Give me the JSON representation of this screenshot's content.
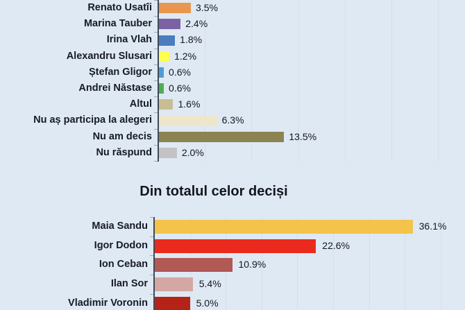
{
  "colors": {
    "background": "#dfe9f3",
    "axis_line": "#3f4a59",
    "tick": "#9aa8ba",
    "gridline": "#d3dfeb",
    "label_text": "#161b26",
    "value_text": "#13161d",
    "title_text": "#13161d"
  },
  "section_title": "Din totalul celor deciși",
  "chart_data": [
    {
      "type": "bar",
      "orientation": "horizontal",
      "title": "",
      "categories": [
        "Renato Usatîi",
        "Marina Tauber",
        "Irina Vlah",
        "Alexandru Slusari",
        "Ștefan Gligor",
        "Andrei Năstase",
        "Altul",
        "Nu aș participa la alegeri",
        "Nu am decis",
        "Nu răspund"
      ],
      "values": [
        3.5,
        2.4,
        1.8,
        1.2,
        0.6,
        0.6,
        1.6,
        6.3,
        13.5,
        2.0
      ],
      "value_labels": [
        "3.5%",
        "2.4%",
        "1.8%",
        "1.2%",
        "0.6%",
        "0.6%",
        "1.6%",
        "6.3%",
        "13.5%",
        "2.0%"
      ],
      "bar_colors": [
        "#e9964e",
        "#7c61a4",
        "#4a7cbe",
        "#ffff4d",
        "#4d9cd9",
        "#4fae53",
        "#c9bd94",
        "#ede6cb",
        "#8b8452",
        "#c3c2c4"
      ],
      "xlim": [
        0,
        32.9
      ],
      "grid": true,
      "grid_interval": 5,
      "unit": "%",
      "legend": "none"
    },
    {
      "type": "bar",
      "orientation": "horizontal",
      "title": "Din totalul celor deciși",
      "categories": [
        "Maia Sandu",
        "Igor Dodon",
        "Ion Ceban",
        "Ilan Sor",
        "Vladimir Voronin"
      ],
      "values": [
        36.1,
        22.6,
        10.9,
        5.4,
        5.0
      ],
      "value_labels": [
        "36.1%",
        "22.6%",
        "10.9%",
        "5.4%",
        "5.0%"
      ],
      "bar_colors": [
        "#f3c34b",
        "#ea2a1d",
        "#b15955",
        "#d5a7a4",
        "#b52318"
      ],
      "xlim": [
        0,
        43.4
      ],
      "grid": true,
      "grid_interval": 5,
      "unit": "%",
      "legend": "none"
    }
  ]
}
